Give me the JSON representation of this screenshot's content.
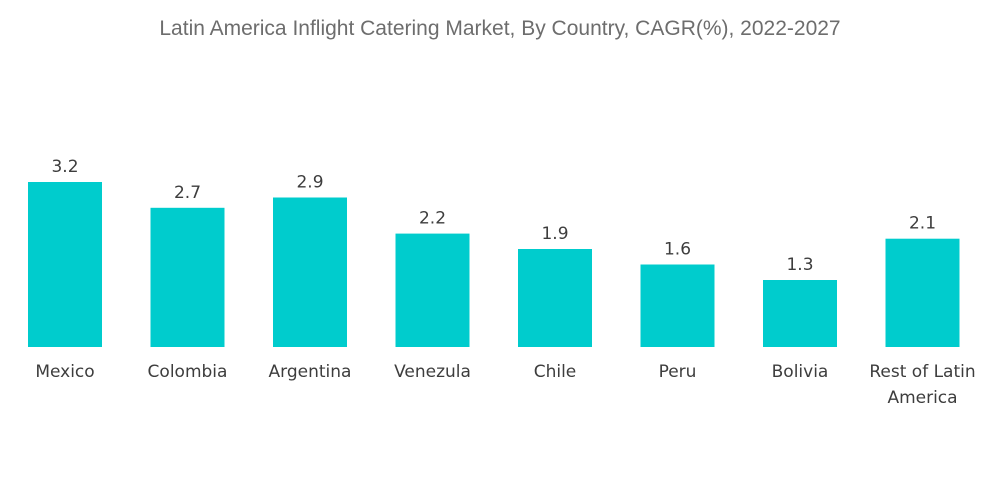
{
  "chart_data": {
    "type": "bar",
    "title": "Latin America Inflight Catering Market, By Country, CAGR(%), 2022-2027",
    "categories": [
      "Mexico",
      "Colombia",
      "Argentina",
      "Venezula",
      "Chile",
      "Peru",
      "Bolivia",
      "Rest of Latin America"
    ],
    "values": [
      3.2,
      2.7,
      2.9,
      2.2,
      1.9,
      1.6,
      1.3,
      2.1
    ],
    "value_labels": [
      "3.2",
      "2.7",
      "2.9",
      "2.2",
      "1.9",
      "1.6",
      "1.3",
      "2.1"
    ],
    "xlabel": "",
    "ylabel": "",
    "ylim": [
      0,
      3.2
    ],
    "grid": false,
    "legend": "none",
    "bar_color": "#00cccd",
    "text_color": "#3d3d3d",
    "title_color": "#6d6d6d"
  }
}
